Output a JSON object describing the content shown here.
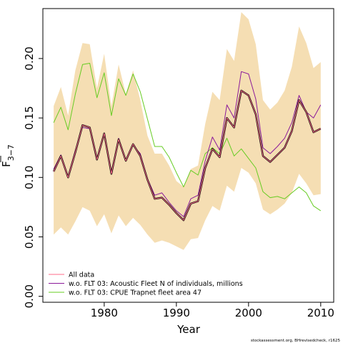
{
  "chart_data": {
    "type": "line",
    "xlabel": "Year",
    "ylabel_main": "F",
    "ylabel_sub": "3−7",
    "xlim": [
      1971.5,
      2011.8
    ],
    "ylim": [
      -0.005,
      0.242
    ],
    "x_ticks": [
      1980,
      1990,
      2000,
      2010
    ],
    "y_ticks": [
      0.0,
      0.05,
      0.1,
      0.15,
      0.2
    ],
    "y_tick_labels": [
      "0.00",
      "0.05",
      "0.10",
      "0.15",
      "0.20"
    ],
    "grid": false,
    "legend_position": "bottom-left",
    "credit": "stockassessment.org, BHrevisedcheck, r1625",
    "years": [
      1973,
      1974,
      1975,
      1976,
      1977,
      1978,
      1979,
      1980,
      1981,
      1982,
      1983,
      1984,
      1985,
      1986,
      1987,
      1988,
      1989,
      1990,
      1991,
      1992,
      1993,
      1994,
      1995,
      1996,
      1997,
      1998,
      1999,
      2000,
      2001,
      2002,
      2003,
      2004,
      2005,
      2006,
      2007,
      2008,
      2009,
      2010
    ],
    "band": {
      "color": "#f5deb3",
      "upper": [
        0.16,
        0.176,
        0.152,
        0.19,
        0.213,
        0.212,
        0.175,
        0.204,
        0.16,
        0.195,
        0.17,
        0.19,
        0.165,
        0.135,
        0.12,
        0.12,
        0.11,
        0.097,
        0.092,
        0.107,
        0.11,
        0.145,
        0.172,
        0.165,
        0.208,
        0.198,
        0.239,
        0.233,
        0.212,
        0.165,
        0.157,
        0.163,
        0.173,
        0.193,
        0.227,
        0.213,
        0.192,
        0.197
      ],
      "lower": [
        0.052,
        0.058,
        0.052,
        0.063,
        0.075,
        0.072,
        0.059,
        0.069,
        0.053,
        0.068,
        0.059,
        0.066,
        0.06,
        0.052,
        0.045,
        0.047,
        0.045,
        0.042,
        0.039,
        0.048,
        0.049,
        0.064,
        0.076,
        0.072,
        0.093,
        0.088,
        0.108,
        0.104,
        0.095,
        0.073,
        0.069,
        0.073,
        0.078,
        0.087,
        0.103,
        0.095,
        0.085,
        0.086
      ]
    },
    "series": [
      {
        "name": "",
        "color": "#000000",
        "width": 2.4,
        "values": [
          0.105,
          0.118,
          0.1,
          0.121,
          0.144,
          0.142,
          0.115,
          0.137,
          0.103,
          0.132,
          0.114,
          0.128,
          0.118,
          0.098,
          0.082,
          0.083,
          0.077,
          0.07,
          0.064,
          0.078,
          0.08,
          0.108,
          0.124,
          0.117,
          0.15,
          0.142,
          0.173,
          0.169,
          0.153,
          0.118,
          0.113,
          0.119,
          0.125,
          0.139,
          0.165,
          0.155,
          0.138,
          0.141
        ]
      },
      {
        "name": "All data",
        "color": "#ff6b8a",
        "width": 1,
        "values": [
          0.105,
          0.118,
          0.1,
          0.121,
          0.144,
          0.142,
          0.115,
          0.137,
          0.103,
          0.132,
          0.114,
          0.128,
          0.118,
          0.098,
          0.082,
          0.083,
          0.077,
          0.07,
          0.064,
          0.078,
          0.08,
          0.108,
          0.124,
          0.117,
          0.15,
          0.142,
          0.173,
          0.169,
          0.153,
          0.118,
          0.113,
          0.119,
          0.125,
          0.139,
          0.165,
          0.155,
          0.138,
          0.141
        ]
      },
      {
        "name": "w.o. FLT 03: Acoustic Fleet  N of individuals, millions",
        "color": "#8b1a9a",
        "width": 1,
        "values": [
          0.107,
          0.119,
          0.101,
          0.123,
          0.142,
          0.141,
          0.116,
          0.136,
          0.104,
          0.133,
          0.114,
          0.127,
          0.12,
          0.099,
          0.085,
          0.087,
          0.079,
          0.072,
          0.067,
          0.082,
          0.085,
          0.114,
          0.134,
          0.123,
          0.161,
          0.15,
          0.189,
          0.187,
          0.166,
          0.125,
          0.12,
          0.126,
          0.133,
          0.146,
          0.169,
          0.155,
          0.15,
          0.161
        ]
      },
      {
        "name": "w.o. FLT 03: CPUE Trapnet fleet area 47",
        "color": "#66cc22",
        "width": 1,
        "values": [
          0.146,
          0.159,
          0.14,
          0.17,
          0.195,
          0.196,
          0.167,
          0.188,
          0.152,
          0.183,
          0.169,
          0.187,
          0.172,
          0.149,
          0.126,
          0.126,
          0.117,
          0.104,
          0.092,
          0.106,
          0.102,
          0.12,
          0.125,
          0.12,
          0.133,
          0.118,
          0.124,
          0.116,
          0.108,
          0.088,
          0.083,
          0.084,
          0.082,
          0.087,
          0.092,
          0.087,
          0.076,
          0.072
        ]
      }
    ]
  }
}
